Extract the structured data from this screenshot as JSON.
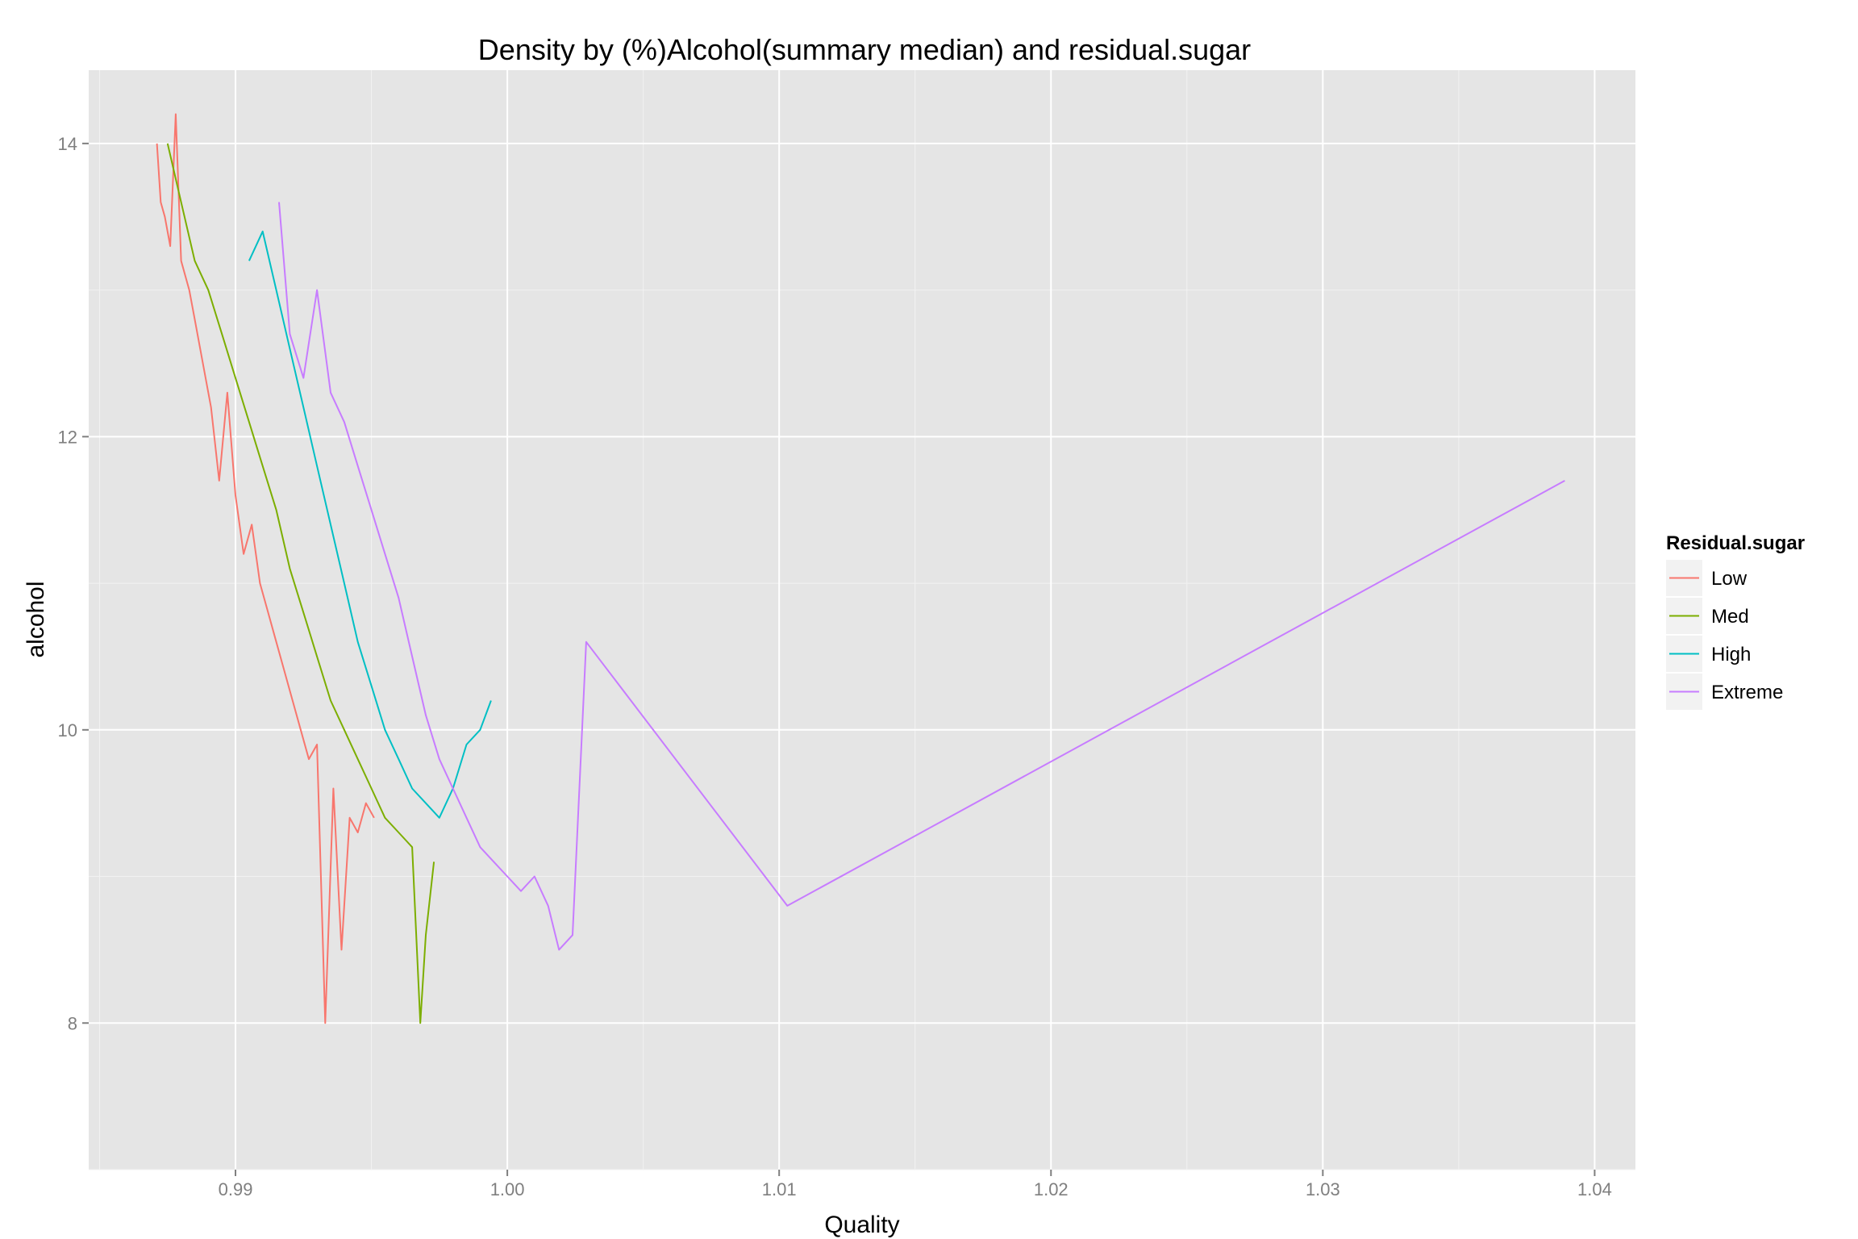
{
  "chart_data": {
    "type": "line",
    "title": "Density by (%)Alcohol(summary median) and residual.sugar",
    "xlabel": "Quality",
    "ylabel": "alcohol",
    "xlim": [
      0.9846,
      1.0415
    ],
    "ylim": [
      7.0,
      14.5
    ],
    "x_ticks": [
      0.99,
      1.0,
      1.01,
      1.02,
      1.03,
      1.04
    ],
    "x_tick_labels": [
      "0.99",
      "1.00",
      "1.01",
      "1.02",
      "1.03",
      "1.04"
    ],
    "y_ticks": [
      8,
      10,
      12,
      14
    ],
    "y_tick_labels": [
      "8",
      "10",
      "12",
      "14"
    ],
    "grid": true,
    "legend": {
      "title": "Residual.sugar",
      "position": "right"
    },
    "series": [
      {
        "name": "Low",
        "color": "#F8766D",
        "x": [
          0.98711,
          0.98725,
          0.9874,
          0.9876,
          0.9878,
          0.988,
          0.9883,
          0.9885,
          0.9888,
          0.9891,
          0.9894,
          0.9897,
          0.99,
          0.9903,
          0.9906,
          0.9909,
          0.9912,
          0.9915,
          0.9918,
          0.9921,
          0.9924,
          0.9927,
          0.993,
          0.9933,
          0.9936,
          0.9939,
          0.9942,
          0.9945,
          0.9948,
          0.9951
        ],
        "y": [
          14.0,
          13.6,
          13.5,
          13.3,
          14.2,
          13.2,
          13.0,
          12.8,
          12.5,
          12.2,
          11.7,
          12.3,
          11.6,
          11.2,
          11.4,
          11.0,
          10.8,
          10.6,
          10.4,
          10.2,
          10.0,
          9.8,
          9.9,
          8.0,
          9.6,
          8.5,
          9.4,
          9.3,
          9.5,
          9.4
        ]
      },
      {
        "name": "Med",
        "color": "#7CAE00",
        "x": [
          0.9875,
          0.988,
          0.9885,
          0.989,
          0.9895,
          0.99,
          0.9905,
          0.991,
          0.9915,
          0.992,
          0.9925,
          0.993,
          0.9935,
          0.994,
          0.9945,
          0.995,
          0.9955,
          0.996,
          0.9965,
          0.9968,
          0.997,
          0.9973
        ],
        "y": [
          14.0,
          13.6,
          13.2,
          13.0,
          12.7,
          12.4,
          12.1,
          11.8,
          11.5,
          11.1,
          10.8,
          10.5,
          10.2,
          10.0,
          9.8,
          9.6,
          9.4,
          9.3,
          9.2,
          8.0,
          8.6,
          9.1
        ]
      },
      {
        "name": "High",
        "color": "#00BFC4",
        "x": [
          0.9905,
          0.991,
          0.9915,
          0.992,
          0.9925,
          0.993,
          0.9935,
          0.994,
          0.9945,
          0.995,
          0.9955,
          0.996,
          0.9965,
          0.997,
          0.9975,
          0.998,
          0.9985,
          0.999,
          0.9994
        ],
        "y": [
          13.2,
          13.4,
          13.0,
          12.6,
          12.2,
          11.8,
          11.4,
          11.0,
          10.6,
          10.3,
          10.0,
          9.8,
          9.6,
          9.5,
          9.4,
          9.6,
          9.9,
          10.0,
          10.2
        ]
      },
      {
        "name": "Extreme",
        "color": "#C77CFF",
        "x": [
          0.9916,
          0.992,
          0.9925,
          0.993,
          0.9935,
          0.994,
          0.9945,
          0.995,
          0.9955,
          0.996,
          0.9965,
          0.997,
          0.9975,
          0.998,
          0.9985,
          0.999,
          0.9995,
          1.0,
          1.0005,
          1.001,
          1.0015,
          1.0019,
          1.0024,
          1.0029,
          1.0103,
          1.0389
        ],
        "y": [
          13.6,
          12.7,
          12.4,
          13.0,
          12.3,
          12.1,
          11.8,
          11.5,
          11.2,
          10.9,
          10.5,
          10.1,
          9.8,
          9.6,
          9.4,
          9.2,
          9.1,
          9.0,
          8.9,
          9.0,
          8.8,
          8.5,
          8.6,
          10.6,
          8.8,
          11.7
        ]
      }
    ]
  }
}
